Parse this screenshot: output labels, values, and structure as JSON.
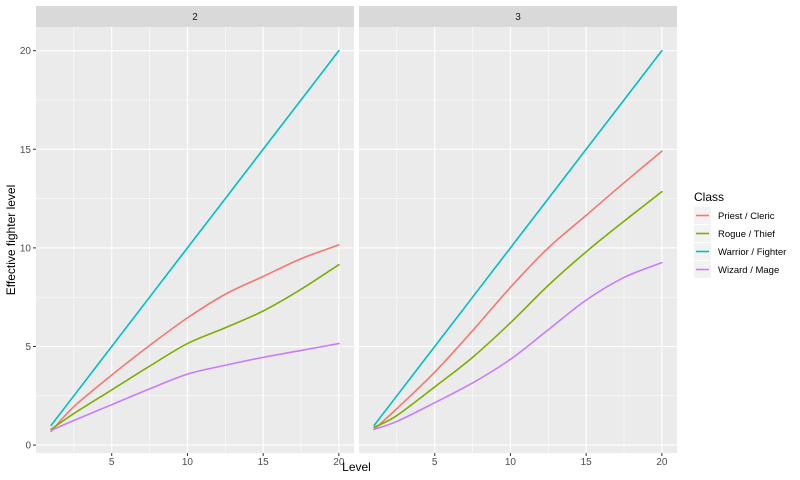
{
  "chart_data": {
    "type": "line",
    "facet_title": "",
    "panels": [
      {
        "label": "2",
        "series": [
          {
            "name": "Priest / Cleric",
            "x": [
              1,
              2.5,
              5,
              7.5,
              10,
              12.5,
              15,
              17.5,
              20
            ],
            "values": [
              0.7,
              1.95,
              3.55,
              5.05,
              6.45,
              7.65,
              8.55,
              9.45,
              10.15
            ]
          },
          {
            "name": "Rogue / Thief",
            "x": [
              1,
              2.5,
              5,
              7.5,
              10,
              12.5,
              15,
              17.5,
              20
            ],
            "values": [
              0.8,
              1.6,
              2.8,
              4.0,
              5.15,
              5.95,
              6.8,
              7.9,
              9.15
            ]
          },
          {
            "name": "Warrior / Fighter",
            "x": [
              1,
              2.5,
              5,
              7.5,
              10,
              12.5,
              15,
              17.5,
              20
            ],
            "values": [
              1.0,
              2.5,
              5.0,
              7.5,
              10.0,
              12.5,
              15.0,
              17.5,
              20.0
            ]
          },
          {
            "name": "Wizard / Mage",
            "x": [
              1,
              2.5,
              5,
              7.5,
              10,
              12.5,
              15,
              17.5,
              20
            ],
            "values": [
              0.75,
              1.25,
              2.05,
              2.85,
              3.6,
              4.05,
              4.45,
              4.8,
              5.15
            ]
          }
        ]
      },
      {
        "label": "3",
        "series": [
          {
            "name": "Priest / Cleric",
            "x": [
              1,
              2.5,
              5,
              7.5,
              10,
              12.5,
              15,
              17.5,
              20
            ],
            "values": [
              0.8,
              1.85,
              3.7,
              5.8,
              8.0,
              10.0,
              11.65,
              13.3,
              14.9
            ]
          },
          {
            "name": "Rogue / Thief",
            "x": [
              1,
              2.5,
              5,
              7.5,
              10,
              12.5,
              15,
              17.5,
              20
            ],
            "values": [
              0.9,
              1.5,
              2.95,
              4.45,
              6.2,
              8.1,
              9.8,
              11.35,
              12.85
            ]
          },
          {
            "name": "Warrior / Fighter",
            "x": [
              1,
              2.5,
              5,
              7.5,
              10,
              12.5,
              15,
              17.5,
              20
            ],
            "values": [
              1.0,
              2.5,
              5.0,
              7.5,
              10.0,
              12.5,
              15.0,
              17.5,
              20.0
            ]
          },
          {
            "name": "Wizard / Mage",
            "x": [
              1,
              2.5,
              5,
              7.5,
              10,
              12.5,
              15,
              17.5,
              20
            ],
            "values": [
              0.8,
              1.2,
              2.15,
              3.15,
              4.35,
              5.85,
              7.35,
              8.5,
              9.25
            ]
          }
        ]
      }
    ],
    "xlabel": "Level",
    "ylabel": "Effective fighter level",
    "xlim": [
      0,
      21
    ],
    "ylim": [
      -0.4,
      21.2
    ],
    "x_ticks": [
      5,
      10,
      15,
      20
    ],
    "y_ticks": [
      0,
      5,
      10,
      15,
      20
    ],
    "legend": {
      "title": "Class",
      "position": "right",
      "entries": [
        "Priest / Cleric",
        "Rogue / Thief",
        "Warrior / Fighter",
        "Wizard / Mage"
      ]
    },
    "colors": {
      "Priest / Cleric": "#F8766D",
      "Rogue / Thief": "#7CAE00",
      "Warrior / Fighter": "#00BFC4",
      "Wizard / Mage": "#C77CFF"
    },
    "grid": true,
    "panel_background": "#EBEBEB",
    "strip_background": "#D9D9D9"
  }
}
